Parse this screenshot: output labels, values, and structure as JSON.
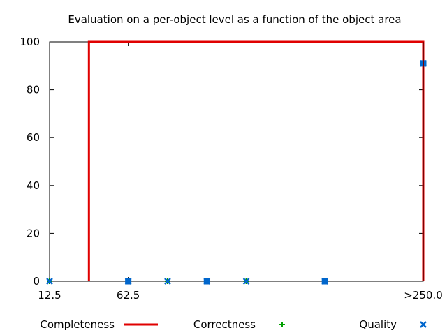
{
  "chart_data": {
    "type": "line",
    "title": "Evaluation on a per-object level as a function of the object area",
    "xlabel": "",
    "ylabel": "",
    "xlim": [
      12.5,
      250
    ],
    "ylim": [
      0,
      100
    ],
    "x_ticks": [
      {
        "value": 12.5,
        "label": "12.5"
      },
      {
        "value": 62.5,
        "label": "62.5"
      },
      {
        "value": 250,
        "label": ">250.0"
      }
    ],
    "y_ticks": [
      0,
      20,
      40,
      60,
      80,
      100
    ],
    "grid": false,
    "legend": "bottom",
    "series": [
      {
        "name": "Completeness",
        "style": "line",
        "color": "#e00000",
        "points": [
          [
            37.5,
            0
          ],
          [
            37.5,
            100
          ],
          [
            250,
            100
          ],
          [
            250,
            0
          ]
        ]
      },
      {
        "name": "Correctness",
        "style": "marker-plus",
        "color": "#00a000",
        "points": [
          [
            12.5,
            0
          ],
          [
            62.5,
            0
          ],
          [
            87.5,
            0
          ],
          [
            112.5,
            0
          ],
          [
            137.5,
            0
          ],
          [
            187.5,
            0
          ],
          [
            250,
            91
          ]
        ]
      },
      {
        "name": "Quality",
        "style": "marker-x",
        "color": "#0066cc",
        "points": [
          [
            12.5,
            0
          ],
          [
            62.5,
            0
          ],
          [
            87.5,
            0
          ],
          [
            112.5,
            0
          ],
          [
            137.5,
            0
          ],
          [
            187.5,
            0
          ],
          [
            250,
            91
          ]
        ]
      }
    ],
    "extra_marker_squares": [
      [
        62.5,
        0
      ],
      [
        112.5,
        0
      ],
      [
        187.5,
        0
      ],
      [
        250,
        91
      ]
    ]
  }
}
